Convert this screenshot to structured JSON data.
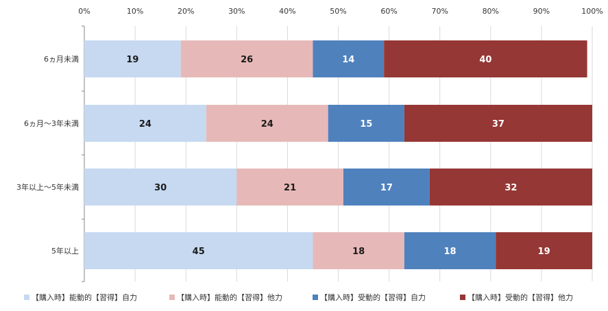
{
  "chart_data": {
    "type": "bar",
    "orientation": "horizontal",
    "stacked": true,
    "normalized": "percent",
    "xlim": [
      0,
      100
    ],
    "x_ticks": [
      "0%",
      "10%",
      "20%",
      "30%",
      "40%",
      "50%",
      "60%",
      "70%",
      "80%",
      "90%",
      "100%"
    ],
    "categories": [
      "6ヵ月未満",
      "6ヵ月～3年未満",
      "3年以上～5年未満",
      "5年以上"
    ],
    "series": [
      {
        "name": "【購入時】能動的【習得】自力",
        "color": "#c6d9f1",
        "label_color": "#1a1a1a",
        "values": [
          19,
          24,
          30,
          45
        ]
      },
      {
        "name": "【購入時】能動的【習得】他力",
        "color": "#e6b9b8",
        "label_color": "#1a1a1a",
        "values": [
          26,
          24,
          21,
          18
        ]
      },
      {
        "name": "【購入時】受動的【習得】自力",
        "color": "#4f81bd",
        "label_color": "#ffffff",
        "values": [
          14,
          15,
          17,
          18
        ]
      },
      {
        "name": "【購入時】受動的【習得】他力",
        "color": "#953735",
        "label_color": "#ffffff",
        "values": [
          40,
          37,
          32,
          19
        ]
      }
    ],
    "grid": true,
    "legend_position": "bottom"
  }
}
